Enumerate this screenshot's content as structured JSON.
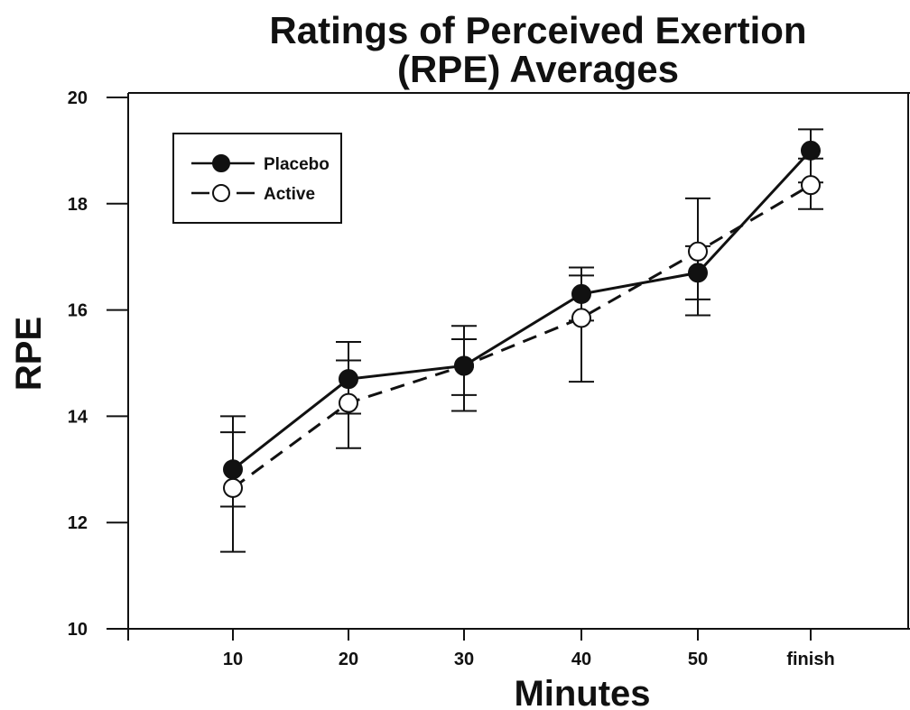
{
  "chart_data": {
    "type": "line",
    "title_line1": "Ratings of Perceived Exertion",
    "title_line2": "(RPE) Averages",
    "xlabel": "Minutes",
    "ylabel": "RPE",
    "categories": [
      "10",
      "20",
      "30",
      "40",
      "50",
      "finish"
    ],
    "ylim": [
      10,
      20
    ],
    "yticks": [
      10,
      12,
      14,
      16,
      18,
      20
    ],
    "legend_position": "top-left",
    "series": [
      {
        "name": "Placebo",
        "marker": "filled-circle",
        "line_style": "solid",
        "values": [
          13.0,
          14.7,
          14.95,
          16.3,
          16.7,
          19.0
        ],
        "error_low": [
          12.3,
          14.05,
          14.4,
          15.8,
          16.2,
          18.4
        ],
        "error_high": [
          13.7,
          15.4,
          15.45,
          16.8,
          17.2,
          19.4
        ]
      },
      {
        "name": "Active",
        "marker": "open-circle",
        "line_style": "dashed",
        "values": [
          12.65,
          14.25,
          14.95,
          15.85,
          17.1,
          18.35
        ],
        "error_low": [
          11.45,
          13.4,
          14.1,
          14.65,
          15.9,
          17.9
        ],
        "error_high": [
          14.0,
          15.05,
          15.7,
          16.65,
          18.1,
          18.85
        ]
      }
    ]
  }
}
